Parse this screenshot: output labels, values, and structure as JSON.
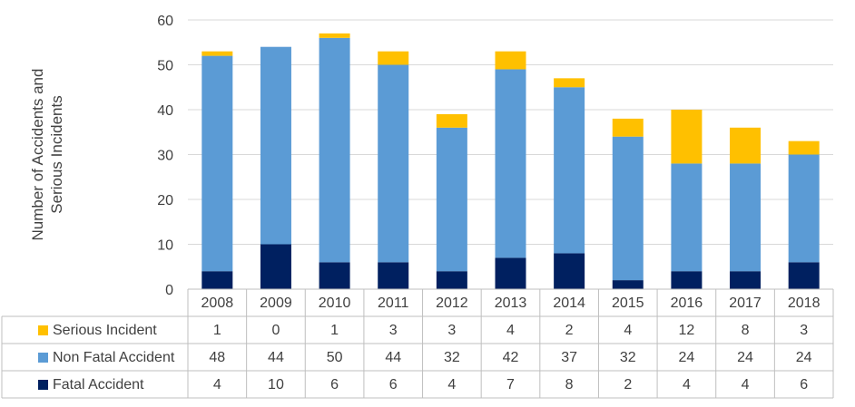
{
  "chart_data": {
    "type": "bar",
    "stacked": true,
    "categories": [
      "2008",
      "2009",
      "2010",
      "2011",
      "2012",
      "2013",
      "2014",
      "2015",
      "2016",
      "2017",
      "2018"
    ],
    "series": [
      {
        "name": "Serious Incident",
        "color": "#ffc000",
        "values": [
          1,
          0,
          1,
          3,
          3,
          4,
          2,
          4,
          12,
          8,
          3
        ]
      },
      {
        "name": "Non Fatal Accident",
        "color": "#5b9bd5",
        "values": [
          48,
          44,
          50,
          44,
          32,
          42,
          37,
          32,
          24,
          24,
          24
        ]
      },
      {
        "name": "Fatal Accident",
        "color": "#002060",
        "values": [
          4,
          10,
          6,
          6,
          4,
          7,
          8,
          2,
          4,
          4,
          6
        ]
      }
    ],
    "stack_order": [
      "Fatal Accident",
      "Non Fatal Accident",
      "Serious Incident"
    ],
    "ylabel": [
      "Number of Accidents and",
      "Serious Incidents"
    ],
    "ylim": [
      0,
      60
    ],
    "yticks": [
      0,
      10,
      20,
      30,
      40,
      50,
      60
    ],
    "grid": true,
    "legend": "data-table"
  }
}
